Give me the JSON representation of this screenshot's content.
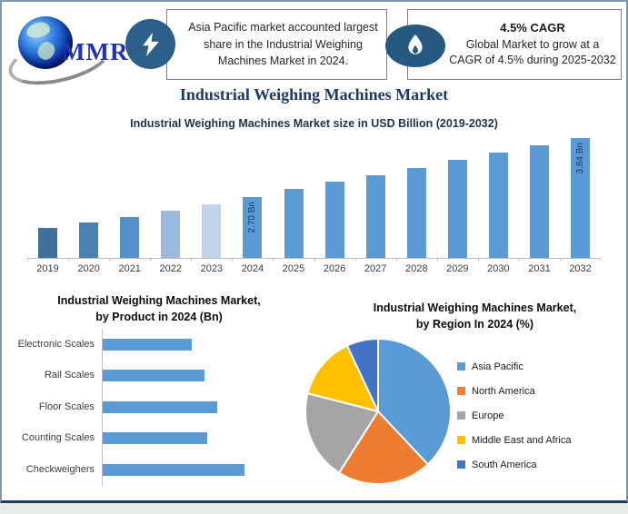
{
  "page": {
    "title": "Industrial Weighing Machines Market"
  },
  "header": {
    "logo_text": "MMR",
    "callout_left": {
      "icon": "lightning-icon",
      "text": "Asia Pacific market accounted largest share in the Industrial Weighing Machines Market in 2024."
    },
    "callout_right": {
      "icon": "flame-icon",
      "title": "4.5% CAGR",
      "text_line1": "Global Market to grow at a",
      "text_line2": "CAGR of 4.5% during 2025-2032"
    }
  },
  "colors": {
    "accent_blue": "#5B9BD5",
    "navy": "#1F3864",
    "orange": "#ED7D31",
    "gray": "#A5A5A5",
    "yellow": "#FFC000",
    "dark_blue": "#4472C4"
  },
  "chart_data": [
    {
      "type": "bar",
      "title": "Industrial Weighing Machines Market size in USD Billion (2019-2032)",
      "categories": [
        "2019",
        "2020",
        "2021",
        "2022",
        "2023",
        "2024",
        "2025",
        "2026",
        "2027",
        "2028",
        "2029",
        "2030",
        "2031",
        "2032"
      ],
      "values": [
        2.1,
        2.2,
        2.31,
        2.43,
        2.56,
        2.7,
        2.85,
        2.99,
        3.12,
        3.26,
        3.41,
        3.55,
        3.69,
        3.84
      ],
      "values_estimated_except_labeled": true,
      "data_labels": [
        {
          "category": "2024",
          "label": "2.70 Bn"
        },
        {
          "category": "2032",
          "label": "3.84 Bn"
        }
      ],
      "bar_colors": [
        "#40719C",
        "#4B80B2",
        "#5590CA",
        "#9CB9DF",
        "#C2D4EC",
        "#5B9BD5",
        "#5B9BD5",
        "#5B9BD5",
        "#5B9BD5",
        "#5B9BD5",
        "#5B9BD5",
        "#5B9BD5",
        "#5B9BD5",
        "#5B9BD5"
      ],
      "ylabel": "USD Billion",
      "grid": false,
      "legend": false
    },
    {
      "type": "bar",
      "orientation": "horizontal",
      "title": "Industrial Weighing Machines Market, by Product in 2024 (Bn)",
      "title_lines": [
        "Industrial Weighing Machines Market,",
        "by Product in 2024 (Bn)"
      ],
      "categories": [
        "Electronic Scales",
        "Rail Scales",
        "Floor Scales",
        "Counting Scales",
        "Checkweighers"
      ],
      "values_relative": [
        0.63,
        0.72,
        0.81,
        0.74,
        1.0
      ],
      "data_labels_shown": false,
      "bar_color": "#5B9BD5",
      "grid": false
    },
    {
      "type": "pie",
      "title": "Industrial Weighing Machines Market, by Region In 2024 (%)",
      "title_lines": [
        "Industrial Weighing Machines Market,",
        "by Region In 2024 (%)"
      ],
      "slices": [
        {
          "label": "Asia Pacific",
          "value_pct": 38,
          "color": "#5B9BD5"
        },
        {
          "label": "North America",
          "value_pct": 21,
          "color": "#ED7D31"
        },
        {
          "label": "Europe",
          "value_pct": 20,
          "color": "#A5A5A5"
        },
        {
          "label": "Middle East and Africa",
          "value_pct": 14,
          "color": "#FFC000"
        },
        {
          "label": "South America",
          "value_pct": 7,
          "color": "#4472C4"
        }
      ],
      "values_estimated": true,
      "start_angle_deg": 0,
      "direction": "clockwise",
      "legend_position": "right"
    }
  ]
}
